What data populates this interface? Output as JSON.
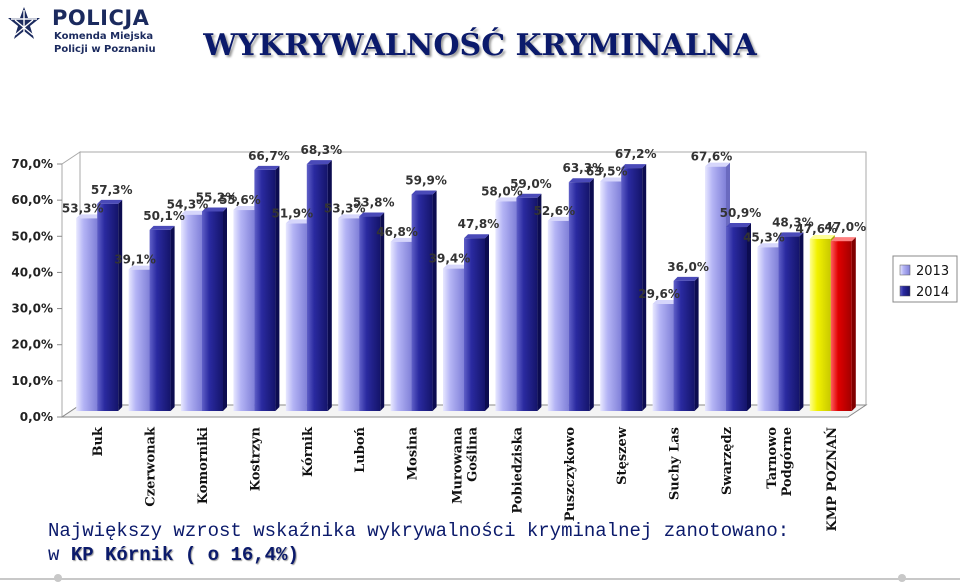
{
  "header": {
    "logo_icon": "police-star-icon",
    "org_name": "POLICJA",
    "org_sub1": "Komenda Miejska",
    "org_sub2": "Policji w Poznaniu",
    "title": "WYKRYWALNOŚĆ KRYMINALNA"
  },
  "footnote": {
    "line1": "Największy wzrost wskaźnika wykrywalności kryminalnej zanotowano:",
    "line2_prefix": "w ",
    "line2_highlight": "KP Kórnik ( o 16,4%)"
  },
  "colors": {
    "series_2013": "#aaaaf0",
    "series_2014": "#1e1e8c",
    "kmp_2013": "#f0f000",
    "kmp_2014": "#dc0000",
    "title": "#0b1a6b"
  },
  "chart_data": {
    "type": "bar",
    "categories": [
      "Buk",
      "Czerwonak",
      "Komorniki",
      "Kostrzyn",
      "Kórnik",
      "Luboń",
      "Mosina",
      "Murowana Goślina",
      "Pobiedziska",
      "Puszczykowo",
      "Stęszew",
      "Suchy Las",
      "Swarzędz",
      "Tarnowo Podgórne",
      "KMP POZNAŃ"
    ],
    "category_lines": [
      [
        "Buk"
      ],
      [
        "Czerwonak"
      ],
      [
        "Komorniki"
      ],
      [
        "Kostrzyn"
      ],
      [
        "Kórnik"
      ],
      [
        "Luboń"
      ],
      [
        "Mosina"
      ],
      [
        "Murowana",
        "Goślina"
      ],
      [
        "Pobiedziska"
      ],
      [
        "Puszczykowo"
      ],
      [
        "Stęszew"
      ],
      [
        "Suchy Las"
      ],
      [
        "Swarzędz"
      ],
      [
        "Tarnowo",
        "Podgórne"
      ],
      [
        "KMP POZNAŃ"
      ]
    ],
    "series": [
      {
        "name": "2013",
        "values": [
          53.3,
          39.1,
          54.3,
          55.6,
          51.9,
          53.3,
          46.8,
          39.4,
          58.0,
          52.6,
          63.5,
          29.6,
          67.6,
          45.3,
          47.6
        ],
        "labels": [
          "53,3%",
          "39,1%",
          "54,3%",
          "55,6%",
          "51,9%",
          "53,3%",
          "46,8%",
          "39,4%",
          "58,0%",
          "52,6%",
          "63,5%",
          "29,6%",
          "67,6%",
          "45,3%",
          "47,6%"
        ]
      },
      {
        "name": "2014",
        "values": [
          57.3,
          50.1,
          55.2,
          66.7,
          68.3,
          53.8,
          59.9,
          47.8,
          59.0,
          63.3,
          67.2,
          36.0,
          50.9,
          48.3,
          47.0
        ],
        "labels": [
          "57,3%",
          "50,1%",
          "55,2%",
          "66,7%",
          "68,3%",
          "53,8%",
          "59,9%",
          "47,8%",
          "59,0%",
          "63,3%",
          "67,2%",
          "36,0%",
          "50,9%",
          "48,3%",
          "47,0%"
        ]
      }
    ],
    "yticks": [
      0,
      10,
      20,
      30,
      40,
      50,
      60,
      70
    ],
    "ytick_labels": [
      "0,0%",
      "10,0%",
      "20,0%",
      "30,0%",
      "40,0%",
      "50,0%",
      "60,0%",
      "70,0%"
    ],
    "ylim": [
      0,
      70
    ],
    "legend_position": "right",
    "grid": false
  }
}
